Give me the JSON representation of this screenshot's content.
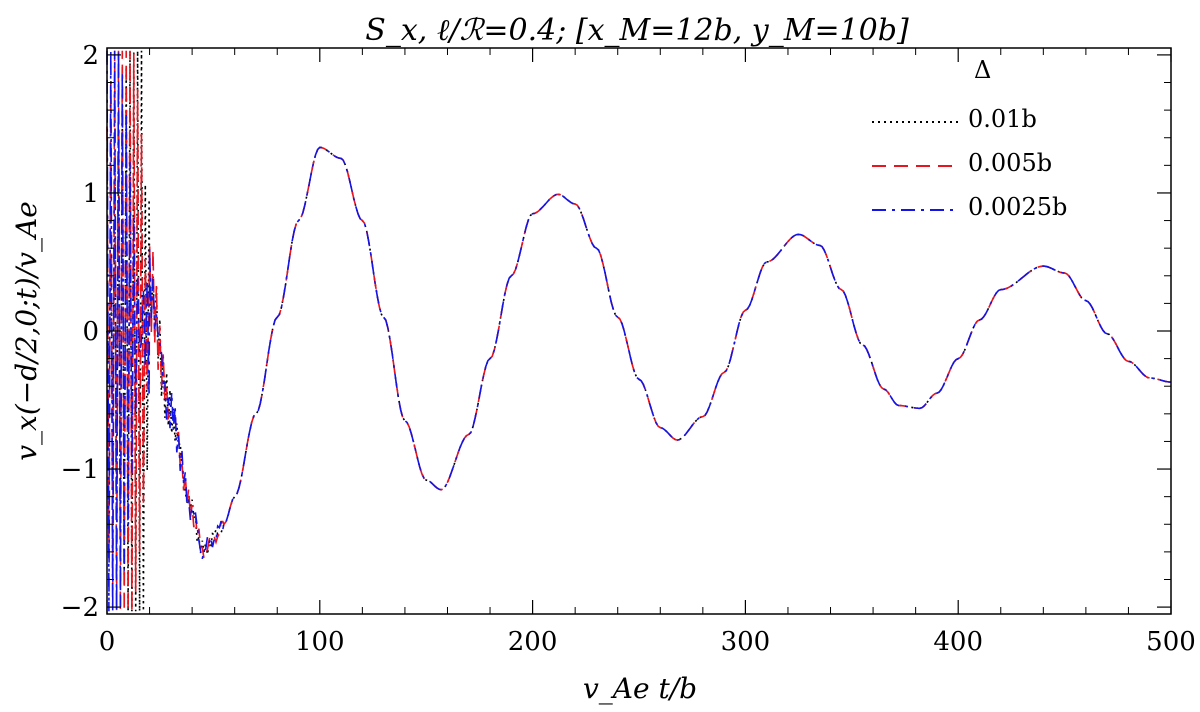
{
  "chart_data": {
    "type": "line",
    "title": "S_x,   ℓ/ℛ=0.4;     [x_M=12b,  y_M=10b]",
    "xlabel": "v_Ae t/b",
    "ylabel": "v_x(−d/2,0;t)/v_Ae",
    "xlim": [
      0,
      500
    ],
    "ylim": [
      -2.05,
      2.05
    ],
    "x_ticks": [
      0,
      100,
      200,
      300,
      400,
      500
    ],
    "y_ticks": [
      -2,
      -1,
      0,
      1,
      2
    ],
    "x_tick_labels": [
      "0",
      "100",
      "200",
      "300",
      "400",
      "500"
    ],
    "y_tick_labels": [
      "−2",
      "−1",
      "0",
      "1",
      "2"
    ],
    "grid": false,
    "legend": {
      "title": "Δ",
      "position": "top-right",
      "entries": [
        "0.01b",
        "0.005b",
        "0.0025b"
      ]
    },
    "series": [
      {
        "name": "0.01b",
        "color": "#000000",
        "dash": "dotted"
      },
      {
        "name": "0.005b",
        "color": "#e8141e",
        "dash": "dashed"
      },
      {
        "name": "0.0025b",
        "color": "#1414e6",
        "dash": "dashdot"
      }
    ],
    "oscillation": {
      "x": [
        0,
        20,
        30,
        40,
        45,
        50,
        55,
        60,
        70,
        80,
        90,
        100,
        110,
        120,
        130,
        140,
        150,
        157,
        170,
        180,
        190,
        200,
        212,
        220,
        230,
        240,
        250,
        260,
        268,
        280,
        290,
        300,
        310,
        325,
        335,
        345,
        355,
        365,
        372,
        382,
        390,
        400,
        410,
        420,
        440,
        450,
        460,
        470,
        480,
        490,
        500
      ],
      "y": [
        0,
        0.3,
        -0.6,
        -1.3,
        -1.6,
        -1.5,
        -1.4,
        -1.2,
        -0.6,
        0.1,
        0.8,
        1.33,
        1.25,
        0.8,
        0.1,
        -0.65,
        -1.08,
        -1.15,
        -0.75,
        -0.2,
        0.4,
        0.85,
        0.99,
        0.92,
        0.6,
        0.1,
        -0.35,
        -0.7,
        -0.79,
        -0.62,
        -0.3,
        0.15,
        0.5,
        0.7,
        0.62,
        0.3,
        -0.1,
        -0.42,
        -0.54,
        -0.56,
        -0.45,
        -0.2,
        0.08,
        0.3,
        0.47,
        0.42,
        0.22,
        -0.02,
        -0.22,
        -0.34,
        -0.37
      ]
    }
  }
}
